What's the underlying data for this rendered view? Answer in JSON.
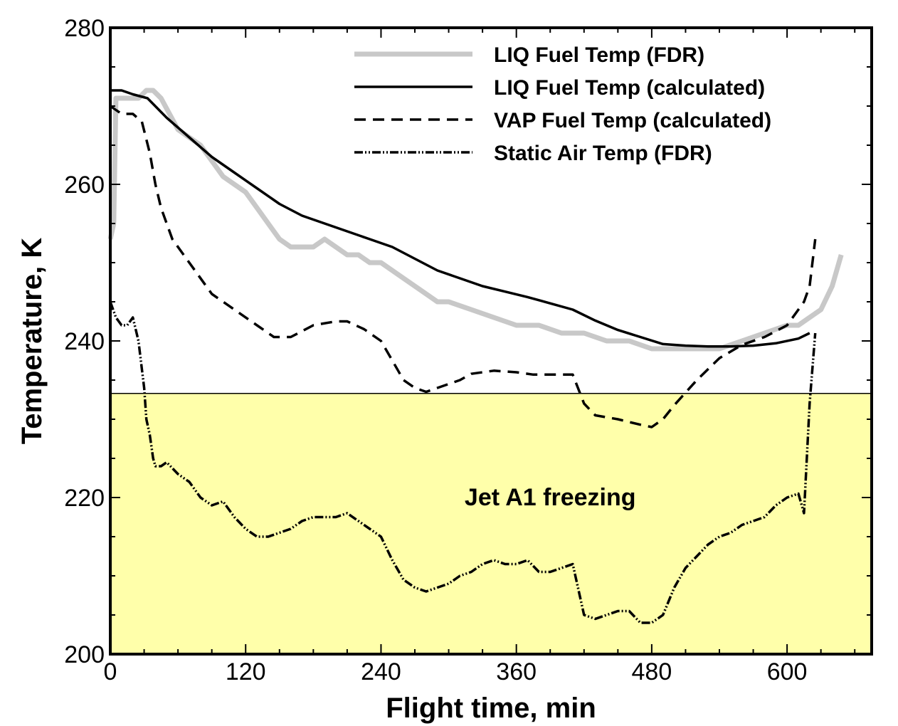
{
  "chart_data": {
    "type": "line",
    "title": "",
    "xlabel": "Flight time, min",
    "ylabel": "Temperature, K",
    "xlim": [
      0,
      675
    ],
    "ylim": [
      200,
      280
    ],
    "xticks": [
      0,
      120,
      240,
      360,
      480,
      600
    ],
    "yticks": [
      200,
      220,
      240,
      260,
      280
    ],
    "grid": false,
    "legend_position": "top-right",
    "annotations": [
      {
        "text": "Jet A1 freezing",
        "x": 390,
        "y": 219
      }
    ],
    "threshold": {
      "y": 233.3,
      "fill_color": "#ffffaa",
      "label": "Jet A1 freezing"
    },
    "series": [
      {
        "name": "LIQ  Fuel Temp (FDR)",
        "color": "#c8c8c8",
        "style": "solid",
        "x": [
          0,
          3,
          5,
          10,
          25,
          32,
          38,
          45,
          60,
          80,
          100,
          120,
          130,
          140,
          150,
          160,
          170,
          180,
          190,
          200,
          210,
          220,
          230,
          240,
          250,
          260,
          270,
          280,
          290,
          300,
          320,
          340,
          360,
          380,
          400,
          420,
          440,
          460,
          480,
          500,
          520,
          540,
          560,
          580,
          600,
          610,
          620,
          630,
          640,
          648
        ],
        "y": [
          253,
          255,
          271,
          271,
          271,
          272,
          272,
          271,
          267,
          265,
          261,
          259,
          257,
          255,
          253,
          252,
          252,
          252,
          253,
          252,
          251,
          251,
          250,
          250,
          249,
          248,
          247,
          246,
          245,
          245,
          244,
          243,
          242,
          242,
          241,
          241,
          240,
          240,
          239,
          239,
          239,
          239,
          240,
          241,
          242,
          242,
          243,
          244,
          247,
          251
        ]
      },
      {
        "name": "LIQ   Fuel Temp (calculated)",
        "color": "#000000",
        "style": "solid",
        "x": [
          0,
          10,
          20,
          33,
          50,
          70,
          90,
          110,
          130,
          150,
          170,
          190,
          210,
          230,
          250,
          270,
          290,
          310,
          330,
          350,
          370,
          390,
          410,
          430,
          450,
          470,
          490,
          510,
          530,
          550,
          570,
          590,
          610,
          620
        ],
        "y": [
          272,
          272,
          271.5,
          271,
          268.5,
          266,
          263.5,
          261.5,
          259.5,
          257.5,
          256,
          255,
          254,
          253,
          252,
          250.5,
          249,
          248,
          247,
          246.3,
          245.6,
          244.8,
          244,
          242.6,
          241.4,
          240.5,
          239.6,
          239.4,
          239.3,
          239.3,
          239.4,
          239.7,
          240.3,
          241
        ]
      },
      {
        "name": "VAP Fuel Temp (calculated)",
        "color": "#000000",
        "style": "dashed",
        "x": [
          0,
          5,
          10,
          20,
          28,
          35,
          40,
          45,
          55,
          70,
          90,
          110,
          130,
          145,
          160,
          180,
          200,
          210,
          225,
          240,
          250,
          260,
          270,
          280,
          290,
          300,
          310,
          320,
          340,
          360,
          375,
          390,
          410,
          420,
          430,
          450,
          470,
          480,
          490,
          500,
          520,
          540,
          560,
          580,
          600,
          610,
          615,
          620,
          625
        ],
        "y": [
          270,
          269.5,
          269,
          269,
          268,
          264,
          260,
          257,
          253,
          250,
          246,
          244,
          242,
          240.5,
          240.5,
          242,
          242.5,
          242.5,
          241.5,
          240,
          237.5,
          235,
          234,
          233.5,
          234,
          234.5,
          235,
          235.8,
          236.2,
          236,
          235.7,
          235.7,
          235.7,
          232,
          230.5,
          230,
          229.3,
          229,
          230,
          231.8,
          235,
          237.8,
          239.5,
          240.5,
          242,
          244,
          245,
          247,
          253
        ]
      },
      {
        "name": "Static Air Temp (FDR)",
        "color": "#000000",
        "style": "dashdot",
        "x": [
          0,
          5,
          10,
          15,
          20,
          25,
          30,
          32,
          35,
          38,
          40,
          45,
          50,
          60,
          70,
          80,
          90,
          100,
          110,
          120,
          130,
          140,
          150,
          160,
          170,
          180,
          190,
          200,
          210,
          220,
          230,
          240,
          250,
          260,
          270,
          280,
          290,
          300,
          310,
          320,
          330,
          340,
          350,
          360,
          370,
          380,
          390,
          400,
          410,
          420,
          430,
          440,
          450,
          460,
          470,
          480,
          490,
          500,
          510,
          520,
          530,
          540,
          550,
          560,
          570,
          580,
          590,
          600,
          610,
          615,
          620,
          625
        ],
        "y": [
          245,
          243,
          242,
          242,
          243,
          240,
          234,
          230,
          228,
          225,
          224,
          224,
          224.5,
          223,
          222,
          220,
          219,
          219.5,
          217.5,
          216,
          215,
          215,
          215.5,
          216,
          217,
          217.5,
          217.5,
          217.5,
          218,
          217,
          216,
          215,
          212,
          209.5,
          208.5,
          208,
          208.5,
          209,
          210,
          210.5,
          211.5,
          212,
          211.5,
          211.5,
          212,
          210.5,
          210.5,
          211,
          211.5,
          205,
          204.5,
          205,
          205.5,
          205.5,
          204,
          204,
          205,
          208.5,
          211,
          212.5,
          214,
          215,
          215.5,
          216.5,
          217,
          217.5,
          219,
          220,
          220.5,
          218,
          232,
          241
        ]
      }
    ]
  }
}
